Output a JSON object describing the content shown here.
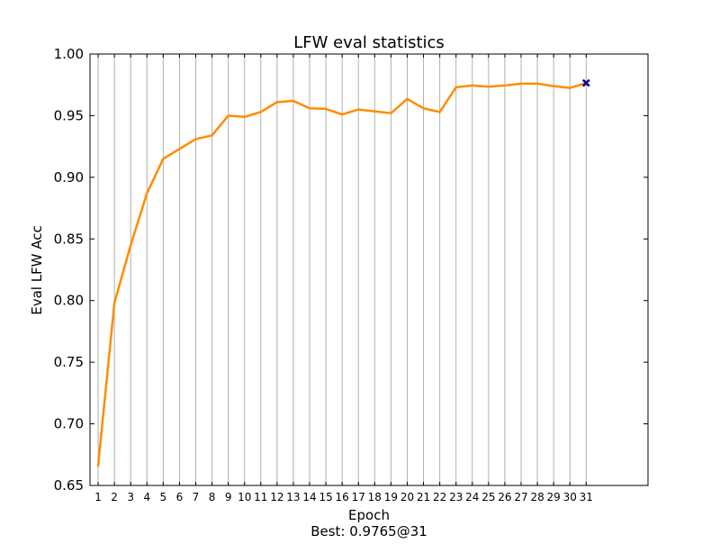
{
  "chart_data": {
    "type": "line",
    "title": "LFW eval statistics",
    "xlabel": "Epoch",
    "ylabel": "Eval LFW Acc",
    "footer": "Best: 0.9765@31",
    "x": [
      1,
      2,
      3,
      4,
      5,
      6,
      7,
      8,
      9,
      10,
      11,
      12,
      13,
      14,
      15,
      16,
      17,
      18,
      19,
      20,
      21,
      22,
      23,
      24,
      25,
      26,
      27,
      28,
      29,
      30,
      31
    ],
    "x_tick_labels": [
      "1",
      "2",
      "3",
      "4",
      "5",
      "6",
      "7",
      "8",
      "9",
      "10",
      "11",
      "12",
      "13",
      "14",
      "15",
      "16",
      "17",
      "18",
      "19",
      "20",
      "21",
      "22",
      "23",
      "24",
      "25",
      "26",
      "27",
      "28",
      "29",
      "30",
      "31"
    ],
    "series": [
      {
        "values": [
          0.666,
          0.798,
          0.845,
          0.887,
          0.915,
          0.923,
          0.931,
          0.934,
          0.95,
          0.949,
          0.953,
          0.961,
          0.962,
          0.956,
          0.9555,
          0.951,
          0.955,
          0.9535,
          0.952,
          0.9635,
          0.956,
          0.953,
          0.973,
          0.9745,
          0.9735,
          0.9745,
          0.976,
          0.976,
          0.974,
          0.9725,
          0.9765
        ],
        "color": "#ff8c00"
      }
    ],
    "best": {
      "x": 31,
      "y": 0.9765,
      "marker": "x",
      "color": "#00008b"
    },
    "xlim": [
      0.5,
      34.8
    ],
    "ylim": [
      0.65,
      1.0
    ],
    "y_ticks": [
      0.65,
      0.7,
      0.75,
      0.8,
      0.85,
      0.9,
      0.95,
      1.0
    ],
    "y_tick_labels": [
      "0.65",
      "0.70",
      "0.75",
      "0.80",
      "0.85",
      "0.90",
      "0.95",
      "1.00"
    ],
    "grid": "vertical",
    "legend": "none"
  }
}
